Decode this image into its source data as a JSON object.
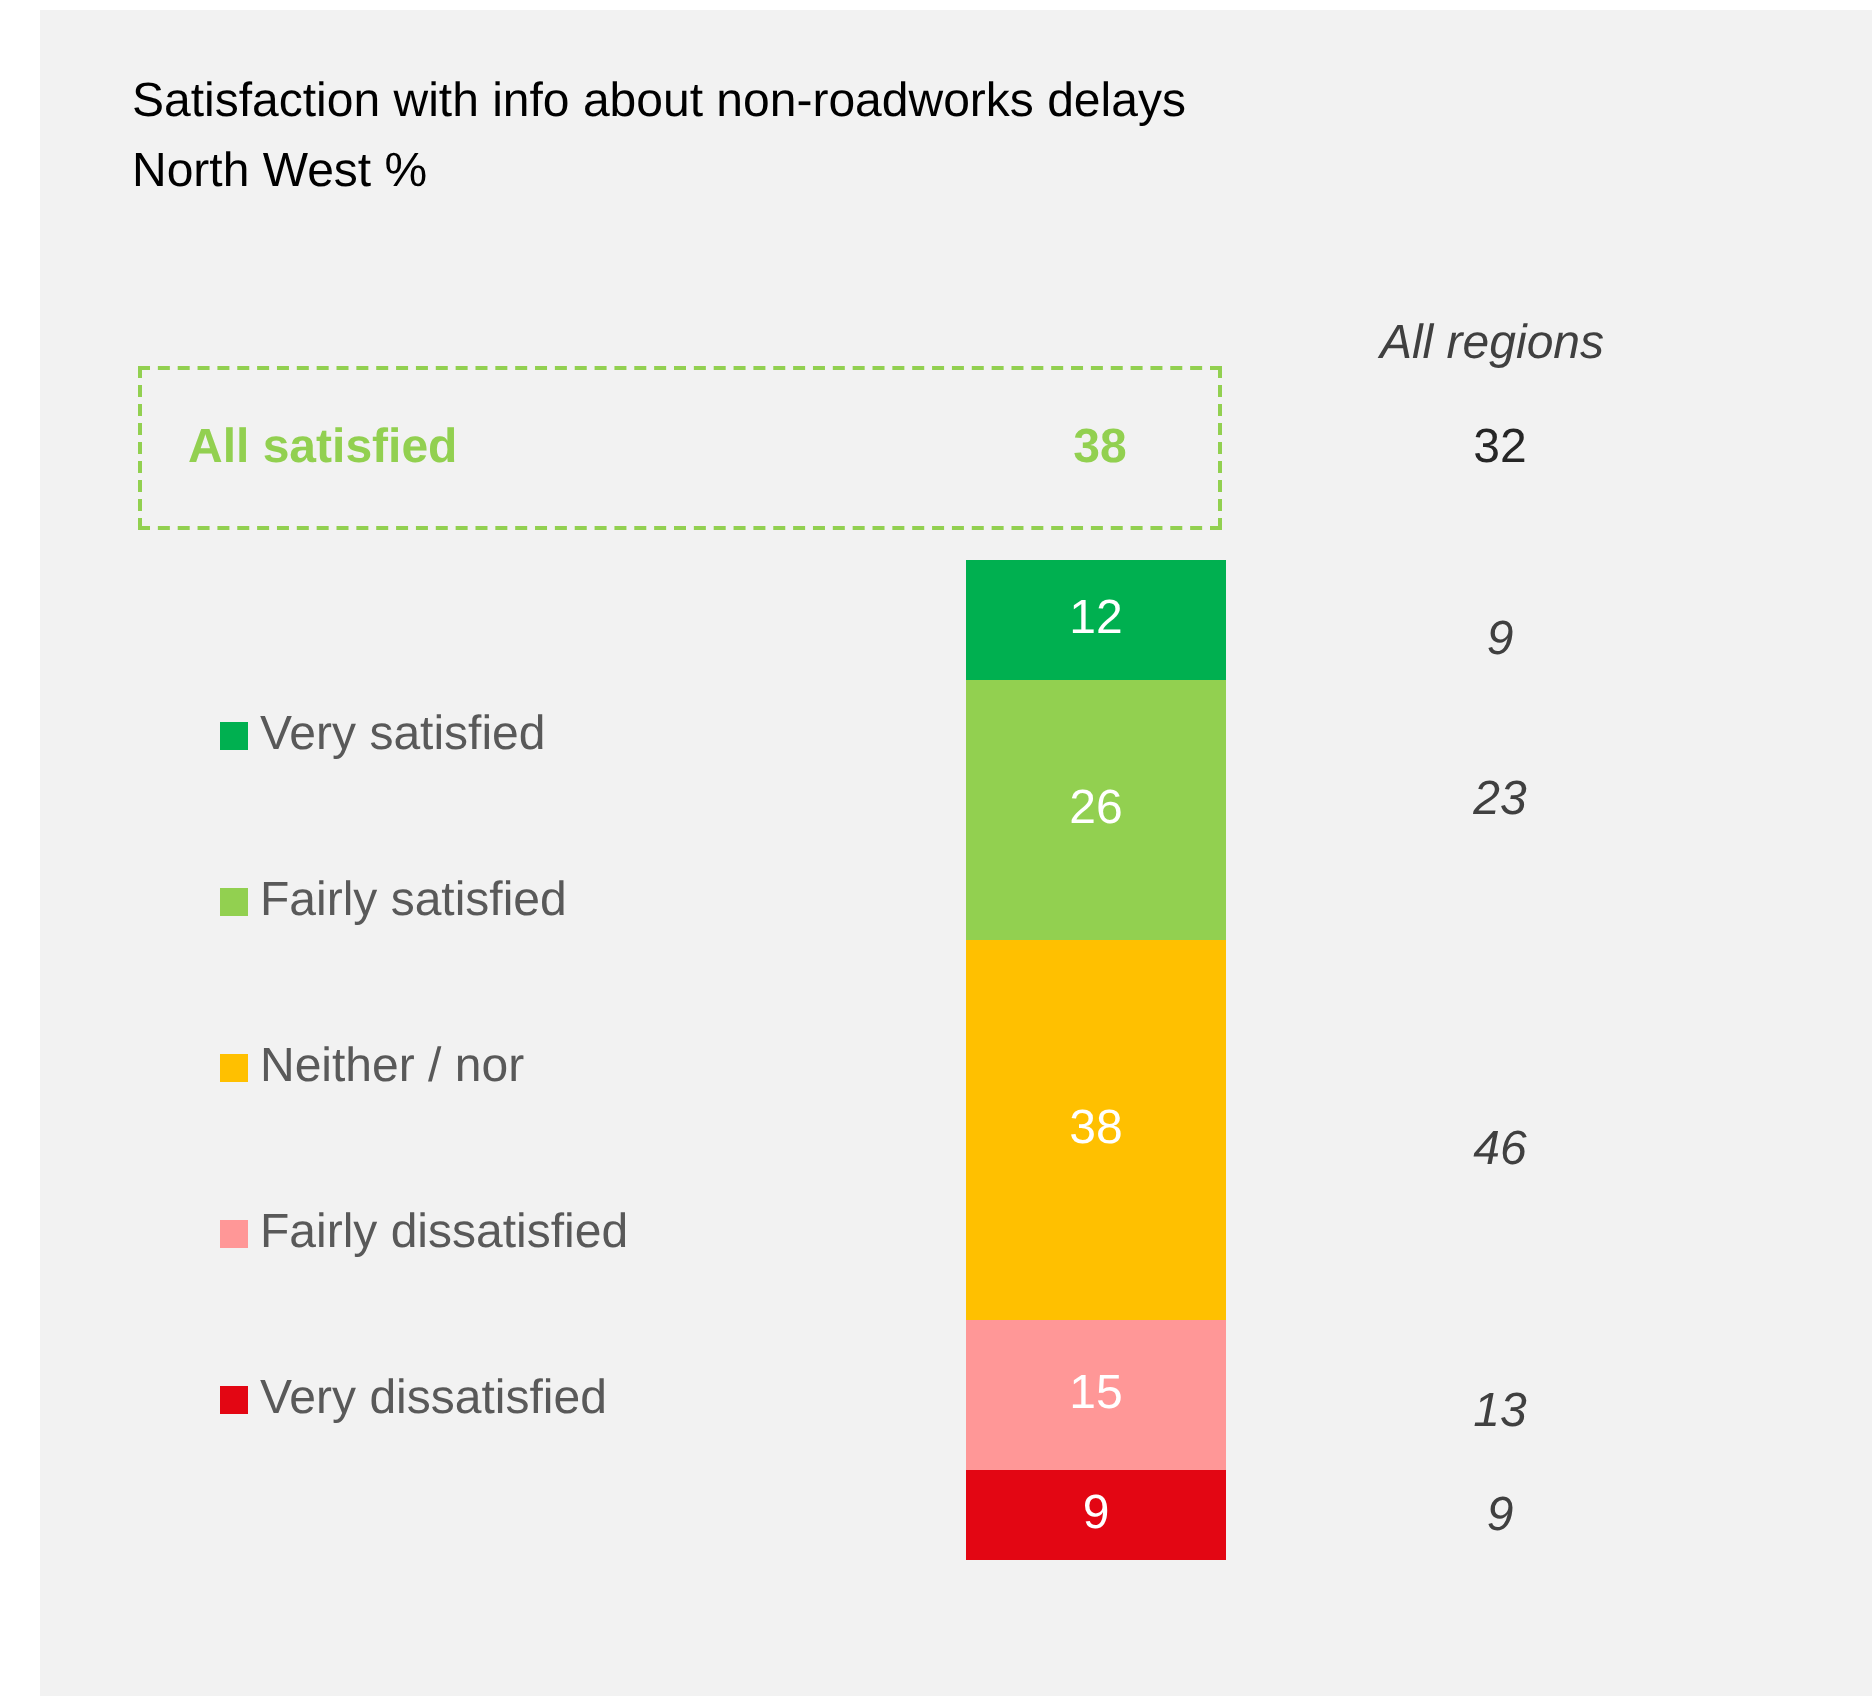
{
  "chart_data": {
    "type": "bar",
    "title": "Satisfaction with info about non-roadworks delays",
    "subtitle": "North West %",
    "categories": [
      null
    ],
    "stacked": true,
    "data_labels": true,
    "legend": "left",
    "tick_labels": false,
    "series": [
      {
        "name": "Very dissatisfied",
        "color": "#e30613",
        "values": [
          9
        ]
      },
      {
        "name": "Fairly dissatisfied",
        "color": "#ff9797",
        "values": [
          15
        ]
      },
      {
        "name": "Neither / nor",
        "color": "#ffc000",
        "values": [
          38
        ]
      },
      {
        "name": "Fairly satisfied",
        "color": "#92d050",
        "values": [
          26
        ]
      },
      {
        "name": "Very satisfied",
        "color": "#00b050",
        "values": [
          12
        ]
      }
    ],
    "annotations": [
      "All satisfied",
      "38",
      "All regions",
      "32",
      "9",
      "23",
      "46",
      "13",
      "9"
    ]
  }
}
